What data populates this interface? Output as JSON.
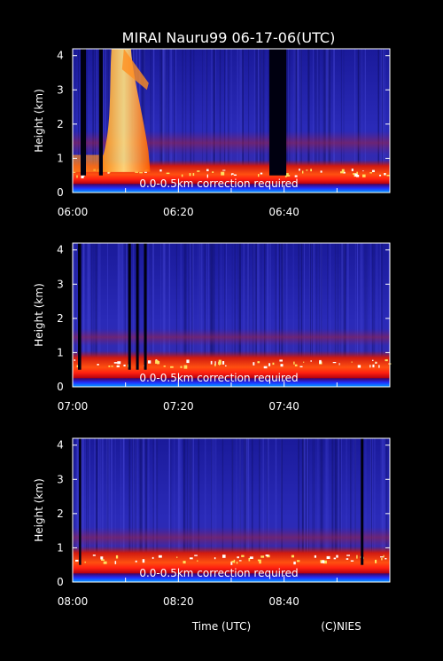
{
  "chart_data": {
    "type": "heatmap",
    "title": "MIRAI Nauru99 06-17-06(UTC)",
    "xlabel": "Time (UTC)",
    "credit": "(C)NIES",
    "note": "0.0-0.5km correction required",
    "ylabel": "Height (km)",
    "ylim": [
      0,
      4.2
    ],
    "yticks": [
      "0",
      "1",
      "2",
      "3",
      "4"
    ],
    "colors": {
      "background": "#000000",
      "field": "#2020b0",
      "layer": "#c01010",
      "cloud": "#ffd040",
      "text": "#ffffff"
    },
    "panels": [
      {
        "name": "06:00-07:00",
        "xticks": [
          "06:00",
          "06:20",
          "06:40"
        ],
        "xrange_min": [
          0,
          60
        ],
        "boundary_layer_top_km": 0.6,
        "elevated_layer_km": [
          1.1,
          1.8
        ],
        "gaps_min": [
          [
            1.5,
            2.5
          ],
          [
            5.0,
            5.7
          ],
          [
            37.2,
            40.4
          ]
        ],
        "cloud_plume": {
          "start_min": 6,
          "end_min": 14,
          "top_km": 4.2
        }
      },
      {
        "name": "07:00-08:00",
        "xticks": [
          "07:00",
          "07:20",
          "07:40"
        ],
        "xrange_min": [
          0,
          60
        ],
        "boundary_layer_top_km": 0.7,
        "elevated_layer_km": [
          1.2,
          1.7
        ],
        "gaps_min": [
          [
            1.0,
            1.6
          ],
          [
            10.5,
            11.0
          ],
          [
            12.0,
            12.5
          ],
          [
            13.5,
            14.0
          ]
        ],
        "cloud_plume": null
      },
      {
        "name": "08:00-09:00",
        "xticks": [
          "08:00",
          "08:20",
          "08:40"
        ],
        "xrange_min": [
          0,
          60
        ],
        "boundary_layer_top_km": 0.7,
        "elevated_layer_km": [
          1.0,
          1.6
        ],
        "gaps_min": [
          [
            1.2,
            1.6
          ],
          [
            54.5,
            55.0
          ]
        ],
        "cloud_plume": null
      }
    ]
  }
}
